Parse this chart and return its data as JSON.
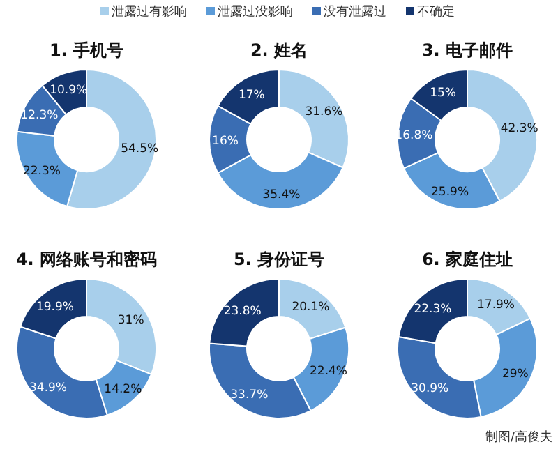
{
  "chart_data": [
    {
      "type": "donut",
      "title": "1. 手机号",
      "legend": "top",
      "categories": [
        "泄露过有影响",
        "泄露过没影响",
        "没有泄露过",
        "不确定"
      ],
      "colors": [
        "#a8cfeb",
        "#5b9bd8",
        "#3a6db3",
        "#14356e"
      ],
      "values": [
        54.5,
        22.3,
        12.3,
        10.9
      ],
      "value_labels": [
        "54.5%",
        "22.3%",
        "12.3%",
        "10.9%"
      ]
    },
    {
      "type": "donut",
      "title": "2. 姓名",
      "colors": [
        "#a8cfeb",
        "#5b9bd8",
        "#3a6db3",
        "#14356e"
      ],
      "values": [
        31.6,
        35.4,
        16,
        17
      ],
      "value_labels": [
        "31.6%",
        "35.4%",
        "16%",
        "17%"
      ]
    },
    {
      "type": "donut",
      "title": "3. 电子邮件",
      "colors": [
        "#a8cfeb",
        "#5b9bd8",
        "#3a6db3",
        "#14356e"
      ],
      "values": [
        42.3,
        25.9,
        16.8,
        15
      ],
      "value_labels": [
        "42.3%",
        "25.9%",
        "16.8%",
        "15%"
      ]
    },
    {
      "type": "donut",
      "title": "4. 网络账号和密码",
      "colors": [
        "#a8cfeb",
        "#5b9bd8",
        "#3a6db3",
        "#14356e"
      ],
      "values": [
        31,
        14.2,
        34.9,
        19.9
      ],
      "value_labels": [
        "31%",
        "14.2%",
        "34.9%",
        "19.9%"
      ]
    },
    {
      "type": "donut",
      "title": "5. 身份证号",
      "colors": [
        "#a8cfeb",
        "#5b9bd8",
        "#3a6db3",
        "#14356e"
      ],
      "values": [
        20.1,
        22.4,
        33.7,
        23.8
      ],
      "value_labels": [
        "20.1%",
        "22.4%",
        "33.7%",
        "23.8%"
      ]
    },
    {
      "type": "donut",
      "title": "6. 家庭住址",
      "colors": [
        "#a8cfeb",
        "#5b9bd8",
        "#3a6db3",
        "#14356e"
      ],
      "values": [
        17.9,
        29,
        30.9,
        22.3
      ],
      "value_labels": [
        "17.9%",
        "29%",
        "30.9%",
        "22.3%"
      ],
      "annotations": [
        "制图/高俊夫"
      ]
    }
  ]
}
